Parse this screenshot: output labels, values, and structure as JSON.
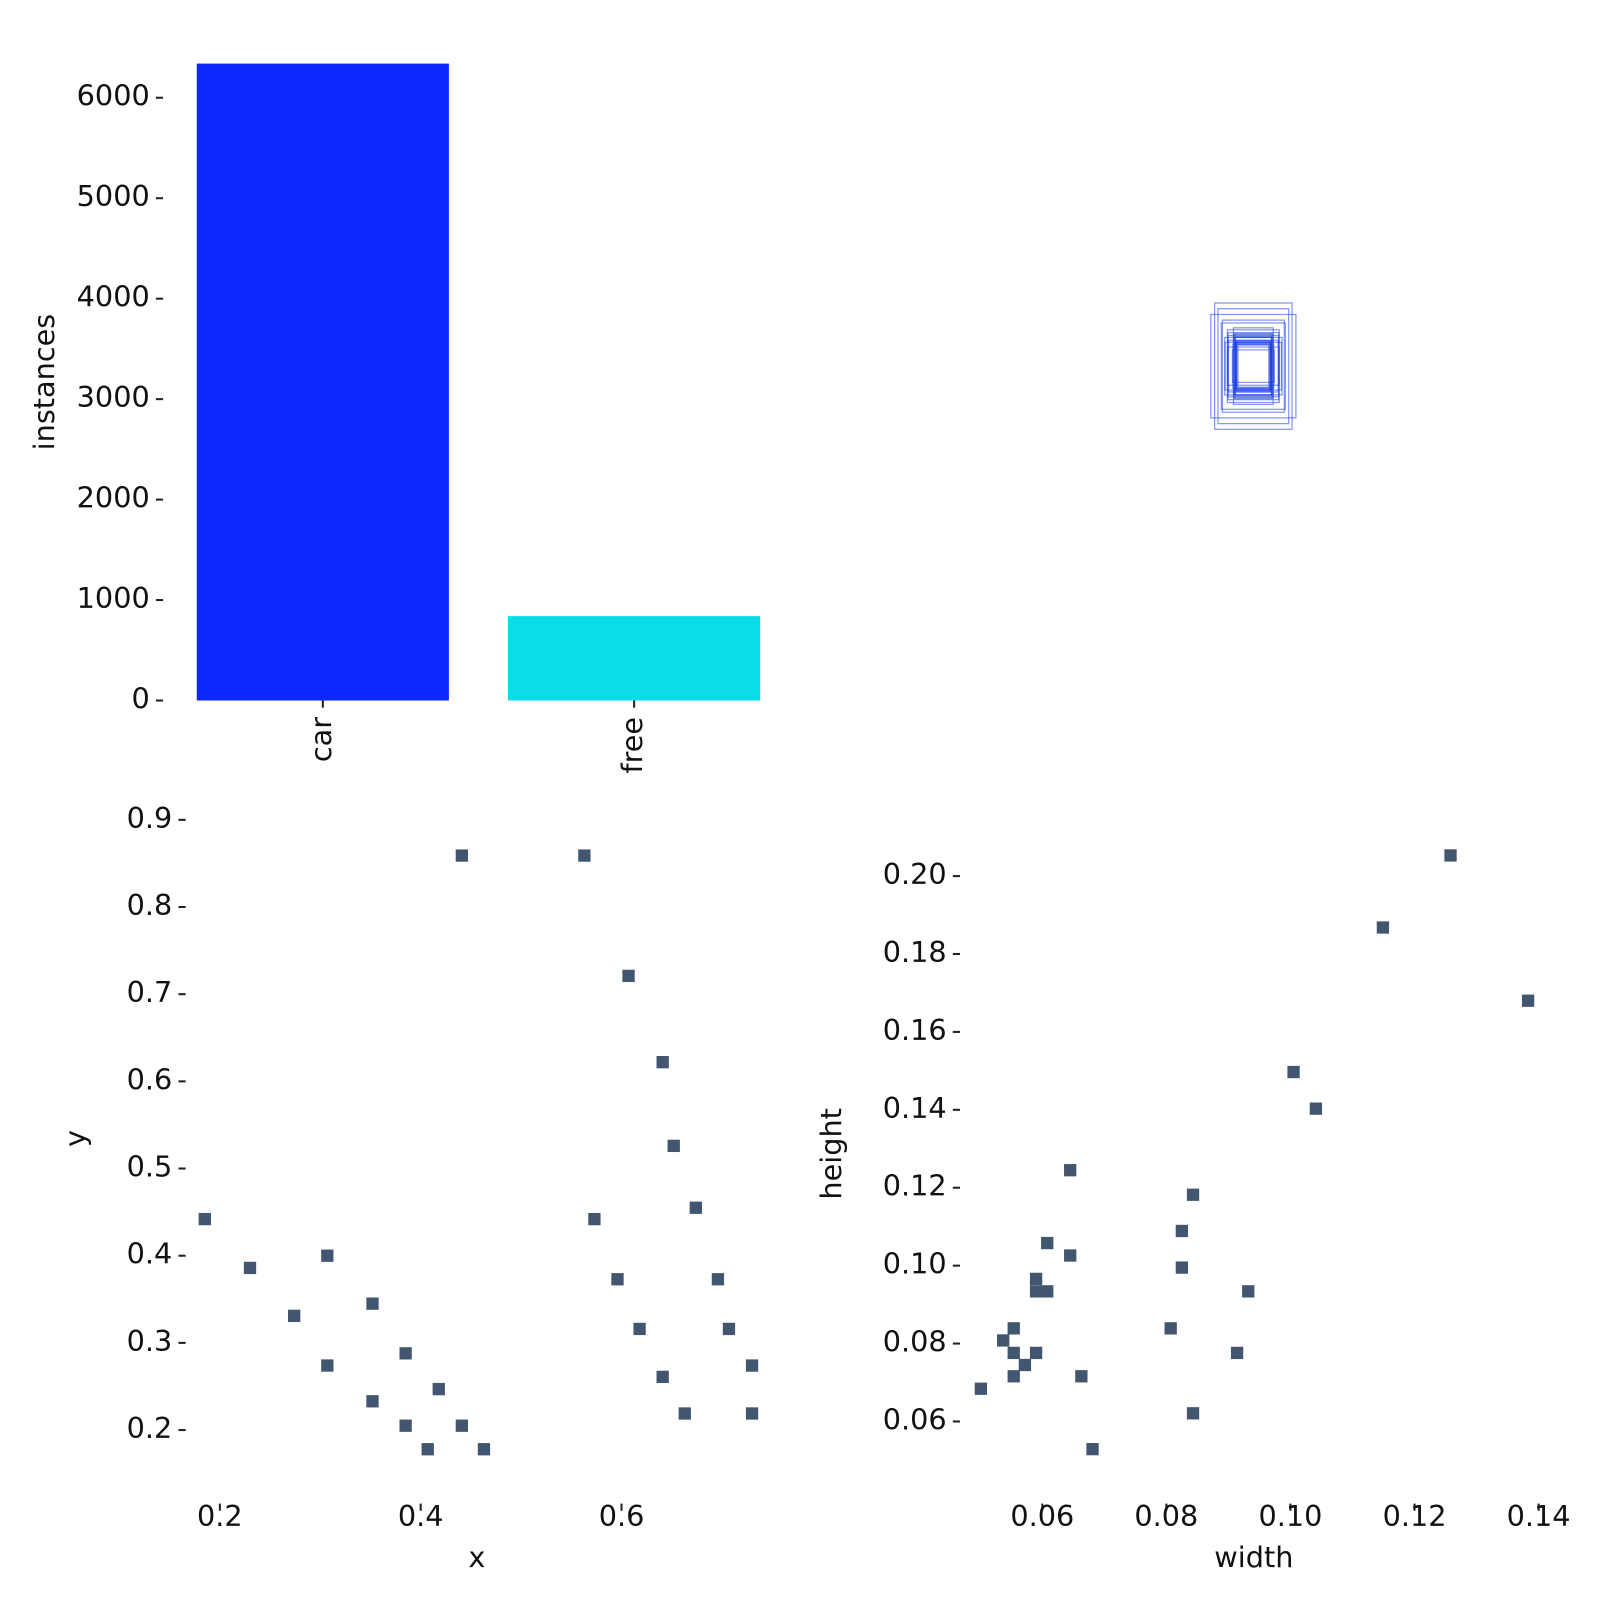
{
  "chart_data": [
    {
      "type": "bar",
      "y_label": "instances",
      "categories": [
        "car",
        "free"
      ],
      "values": [
        6340,
        840
      ],
      "colors": [
        "#0a28ff",
        "#0cdce8"
      ],
      "ylim": [
        0,
        6340
      ],
      "yticks": [
        0,
        1000,
        2000,
        3000,
        4000,
        5000,
        6000
      ]
    },
    {
      "type": "boxes",
      "color": "#1d3fe6",
      "xlim": [
        0,
        1
      ],
      "ylim": [
        0,
        1
      ],
      "widths": [
        0.0501,
        0.0537,
        0.0554,
        0.0554,
        0.0554,
        0.0572,
        0.059,
        0.059,
        0.059,
        0.0608,
        0.0608,
        0.0645,
        0.0645,
        0.0663,
        0.0681,
        0.0807,
        0.0825,
        0.0825,
        0.0843,
        0.0843,
        0.0914,
        0.0932,
        0.1005,
        0.1041,
        0.1149,
        0.1258,
        0.1383
      ],
      "heights": [
        0.0684,
        0.0808,
        0.0839,
        0.0776,
        0.0716,
        0.0745,
        0.0776,
        0.0966,
        0.0934,
        0.0934,
        0.1058,
        0.1026,
        0.1245,
        0.0716,
        0.0529,
        0.0839,
        0.1089,
        0.0995,
        0.1182,
        0.0621,
        0.0776,
        0.0934,
        0.1497,
        0.1403,
        0.1868,
        0.2053,
        0.168
      ]
    },
    {
      "type": "scatter",
      "x_label": "x",
      "y_label": "y",
      "color": "#43566f",
      "x": [
        0.185,
        0.23,
        0.274,
        0.307,
        0.307,
        0.352,
        0.352,
        0.385,
        0.385,
        0.418,
        0.407,
        0.441,
        0.463,
        0.441,
        0.563,
        0.607,
        0.641,
        0.652,
        0.573,
        0.674,
        0.596,
        0.696,
        0.618,
        0.707,
        0.641,
        0.73,
        0.663,
        0.73
      ],
      "values": [
        0.442,
        0.386,
        0.331,
        0.4,
        0.274,
        0.345,
        0.233,
        0.288,
        0.205,
        0.247,
        0.178,
        0.205,
        0.178,
        0.859,
        0.859,
        0.721,
        0.622,
        0.526,
        0.442,
        0.455,
        0.373,
        0.373,
        0.316,
        0.316,
        0.261,
        0.274,
        0.219,
        0.219
      ],
      "xlim": [
        0.17,
        0.742
      ],
      "ylim": [
        0.158,
        0.911
      ],
      "xticks": [
        0.2,
        0.4,
        0.6
      ],
      "yticks": [
        0.2,
        0.3,
        0.4,
        0.5,
        0.6,
        0.7,
        0.8,
        0.9
      ]
    },
    {
      "type": "scatter",
      "x_label": "width",
      "y_label": "height",
      "color": "#43566f",
      "x": [
        0.0501,
        0.0537,
        0.0554,
        0.0554,
        0.0554,
        0.0572,
        0.059,
        0.059,
        0.059,
        0.0608,
        0.0608,
        0.0645,
        0.0645,
        0.0663,
        0.0681,
        0.0807,
        0.0825,
        0.0825,
        0.0843,
        0.0843,
        0.0914,
        0.0932,
        0.1005,
        0.1041,
        0.1149,
        0.1258,
        0.1383
      ],
      "values": [
        0.0684,
        0.0808,
        0.0839,
        0.0776,
        0.0716,
        0.0745,
        0.0776,
        0.0966,
        0.0934,
        0.0934,
        0.1058,
        0.1026,
        0.1245,
        0.0716,
        0.0529,
        0.0839,
        0.1089,
        0.0995,
        0.1182,
        0.0621,
        0.0776,
        0.0934,
        0.1497,
        0.1403,
        0.1868,
        0.2053,
        0.168
      ],
      "xlim": [
        0.0474,
        0.1408
      ],
      "ylim": [
        0.0484,
        0.209
      ],
      "xticks": [
        0.06,
        {
          "value": 0.08,
          "label": "0.08"
        },
        {
          "value": 0.1,
          "label": "0.10"
        },
        {
          "value": 0.12,
          "label": "0.12"
        },
        {
          "value": 0.14,
          "label": "0.14"
        }
      ],
      "yticks": [
        0.06,
        0.08,
        {
          "value": 0.1,
          "label": "0.10"
        },
        0.12,
        0.14,
        0.16,
        0.18,
        {
          "value": 0.2,
          "label": "0.20"
        }
      ]
    }
  ]
}
